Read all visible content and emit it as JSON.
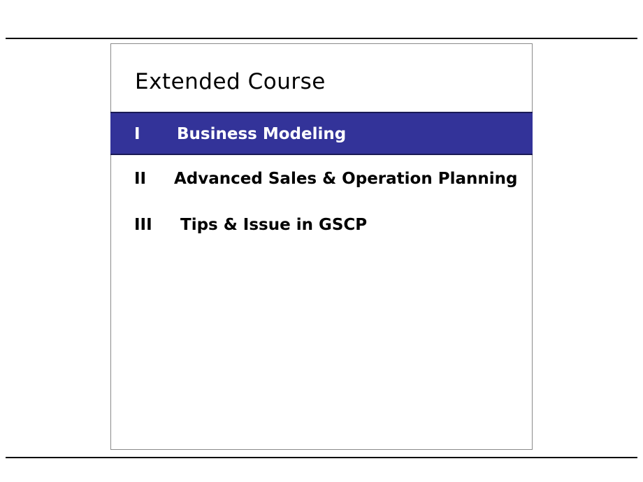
{
  "slide": {
    "title": "Extended Course",
    "accent_color": "#333399",
    "items": [
      {
        "numeral": "I",
        "label": "Business Modeling",
        "highlighted": true
      },
      {
        "numeral": "II",
        "label": "Advanced Sales & Operation Planning",
        "highlighted": false
      },
      {
        "numeral": "III",
        "label": "Tips & Issue in GSCP",
        "highlighted": false
      }
    ]
  }
}
